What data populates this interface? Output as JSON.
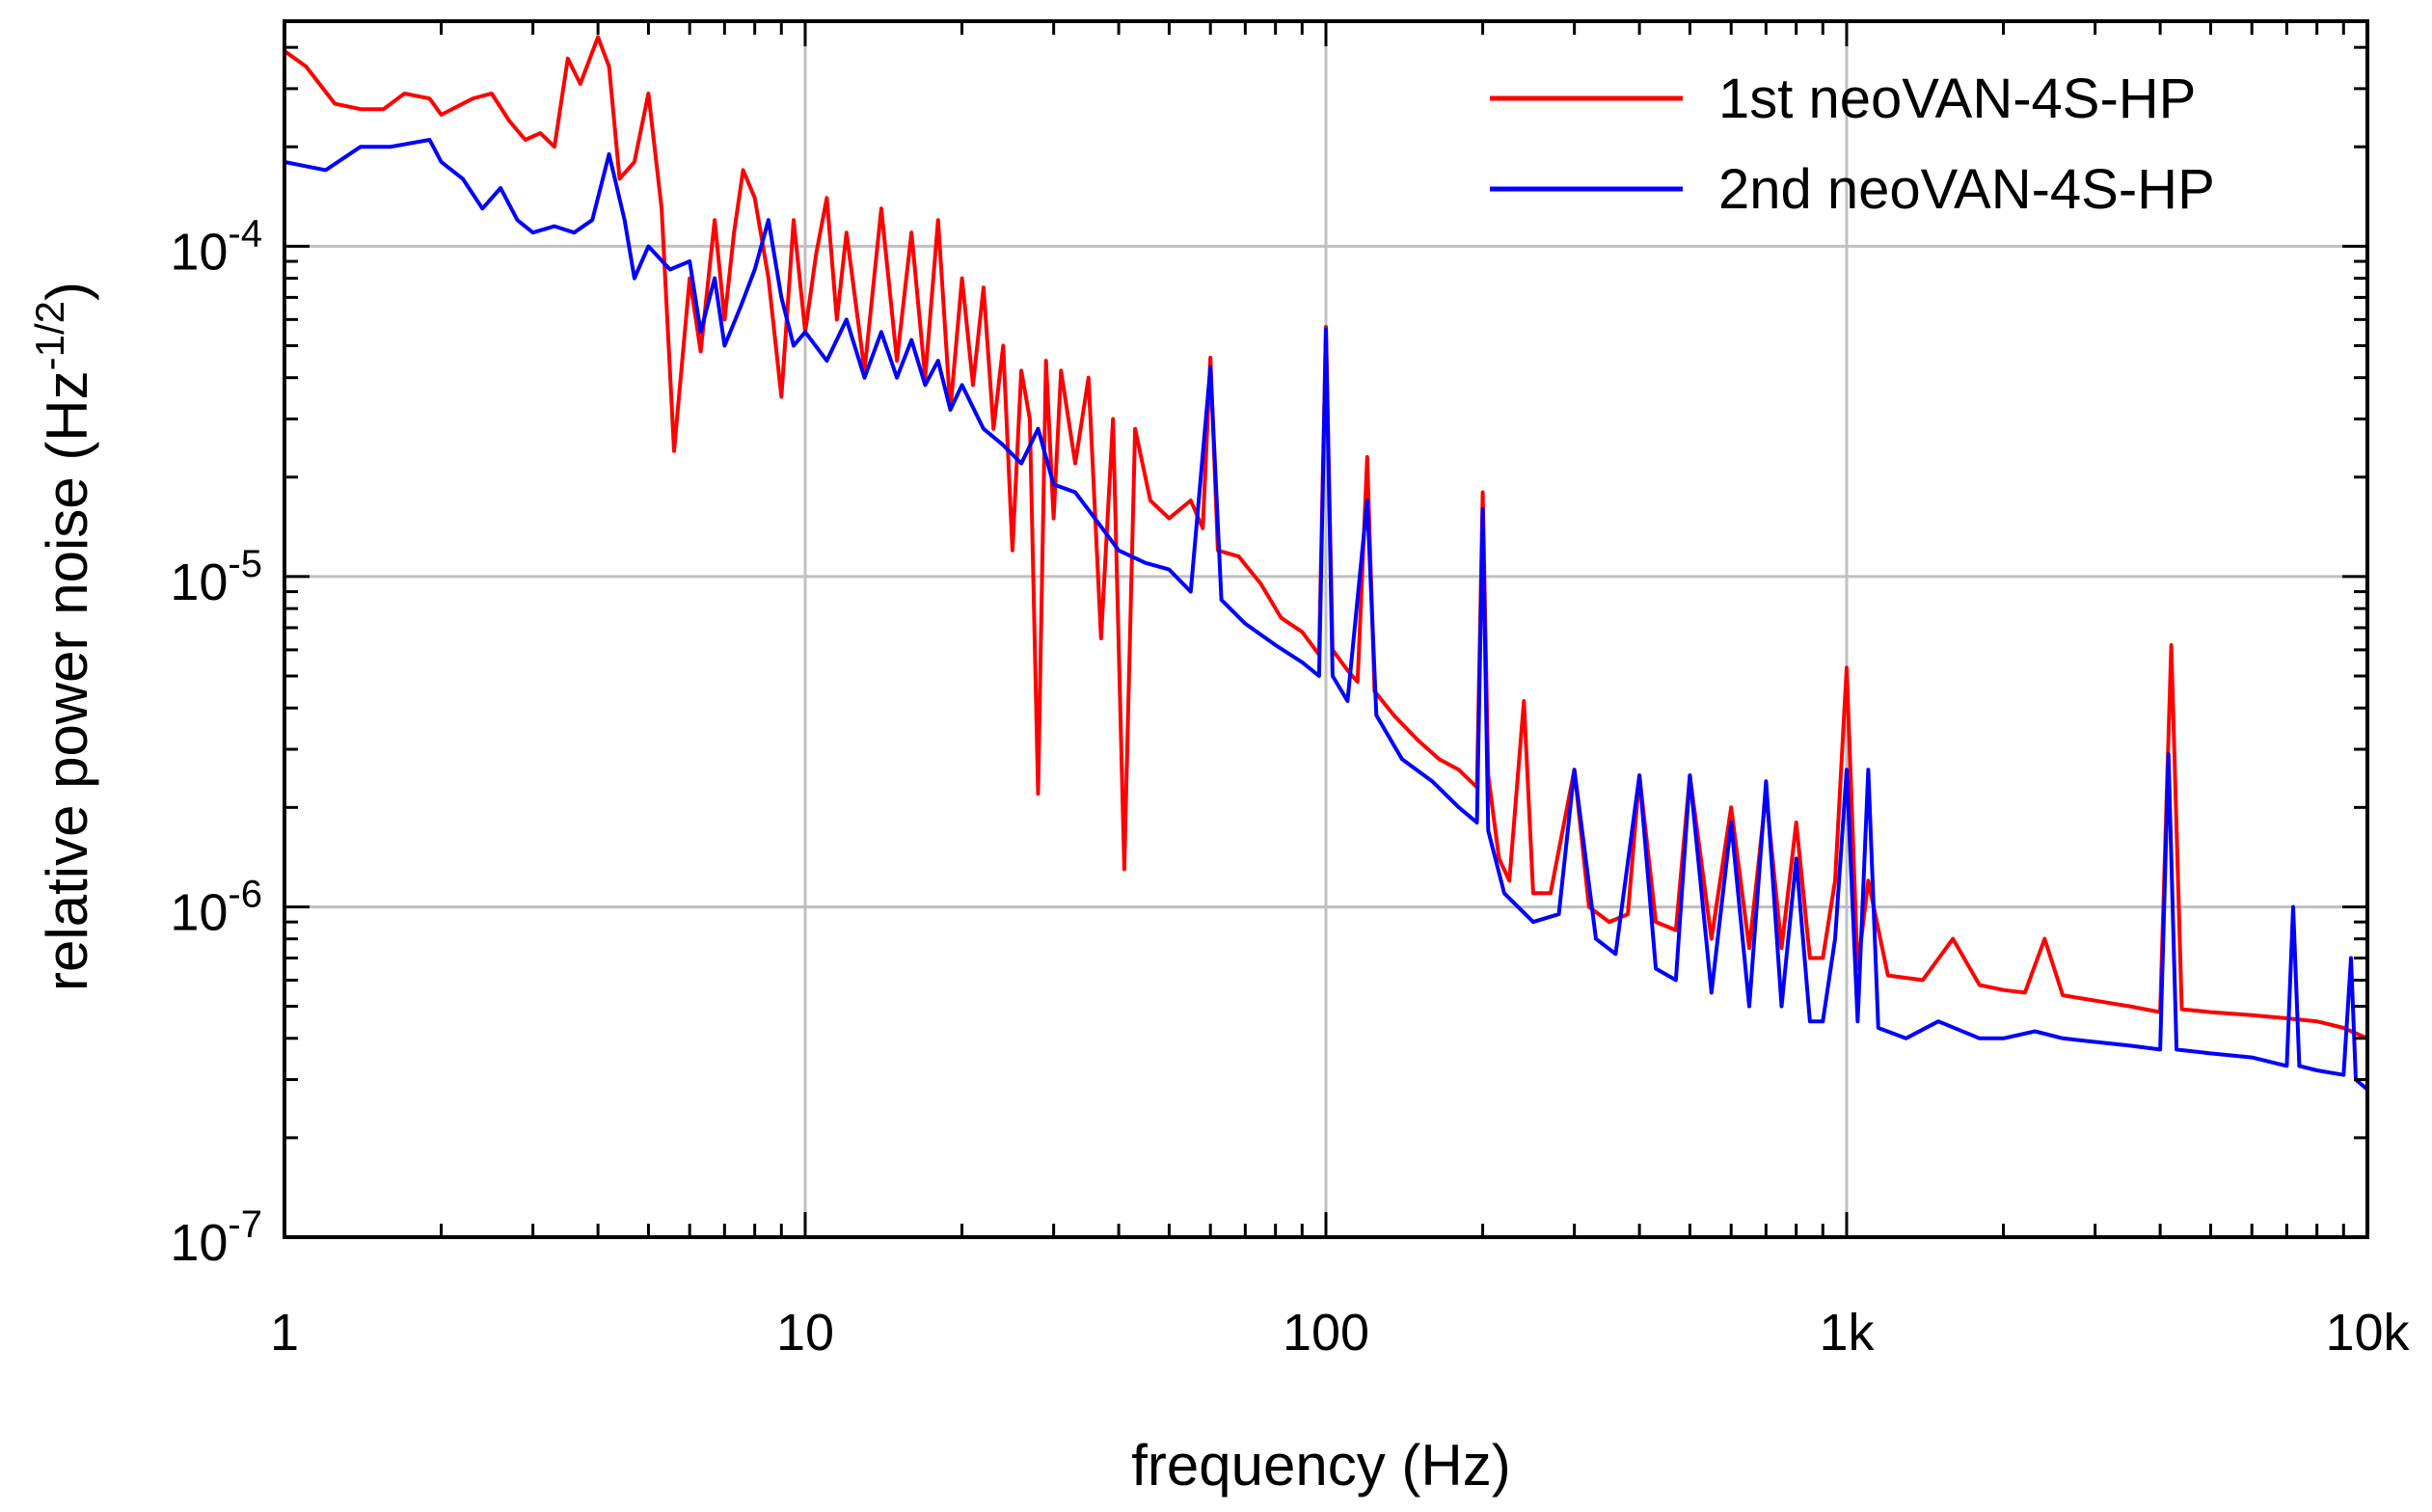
{
  "chart_data": {
    "type": "line",
    "xscale": "log",
    "yscale": "log",
    "xlim": [
      1,
      10000
    ],
    "ylim": [
      1e-07,
      0.00048
    ],
    "grid": true,
    "legend_position": "top-right",
    "xlabel": "frequency (Hz)",
    "ylabel": {
      "prefix": "relative power noise (Hz",
      "sup": "-1/2",
      "suffix": ")"
    },
    "x_ticks": [
      {
        "value": 1,
        "label": "1"
      },
      {
        "value": 10,
        "label": "10"
      },
      {
        "value": 100,
        "label": "100"
      },
      {
        "value": 1000,
        "label": "1k"
      },
      {
        "value": 10000,
        "label": "10k"
      }
    ],
    "y_ticks": [
      {
        "value": 1e-07,
        "base": "10",
        "exp": "-7"
      },
      {
        "value": 1e-06,
        "base": "10",
        "exp": "-6"
      },
      {
        "value": 1e-05,
        "base": "10",
        "exp": "-5"
      },
      {
        "value": 0.0001,
        "base": "10",
        "exp": "-4"
      }
    ],
    "series": [
      {
        "name": "1st neoVAN-4S-HP",
        "color": "#ff0000",
        "points": [
          [
            1.0,
            0.00039
          ],
          [
            1.1,
            0.00035
          ],
          [
            1.25,
            0.00027
          ],
          [
            1.4,
            0.00026
          ],
          [
            1.55,
            0.00026
          ],
          [
            1.7,
            0.00029
          ],
          [
            1.9,
            0.00028
          ],
          [
            2.0,
            0.00025
          ],
          [
            2.3,
            0.00028
          ],
          [
            2.5,
            0.00029
          ],
          [
            2.7,
            0.00024
          ],
          [
            2.9,
            0.00021
          ],
          [
            3.1,
            0.00022
          ],
          [
            3.3,
            0.0002
          ],
          [
            3.5,
            0.00037
          ],
          [
            3.7,
            0.00031
          ],
          [
            4.0,
            0.00043
          ],
          [
            4.2,
            0.00035
          ],
          [
            4.4,
            0.00016
          ],
          [
            4.7,
            0.00018
          ],
          [
            5.0,
            0.00029
          ],
          [
            5.3,
            0.00013
          ],
          [
            5.6,
            2.4e-05
          ],
          [
            6.0,
            8e-05
          ],
          [
            6.3,
            4.8e-05
          ],
          [
            6.7,
            0.00012
          ],
          [
            7.0,
            6e-05
          ],
          [
            7.3,
            0.00011
          ],
          [
            7.6,
            0.00017
          ],
          [
            8.0,
            0.00014
          ],
          [
            8.5,
            8e-05
          ],
          [
            9.0,
            3.5e-05
          ],
          [
            9.5,
            0.00012
          ],
          [
            10.0,
            5.5e-05
          ],
          [
            10.5,
            9.5e-05
          ],
          [
            11.0,
            0.00014
          ],
          [
            11.5,
            6e-05
          ],
          [
            12.0,
            0.00011
          ],
          [
            13.0,
            4.2e-05
          ],
          [
            14.0,
            0.00013
          ],
          [
            15.0,
            4.5e-05
          ],
          [
            16.0,
            0.00011
          ],
          [
            17.0,
            4e-05
          ],
          [
            18.0,
            0.00012
          ],
          [
            19.0,
            3.2e-05
          ],
          [
            20.0,
            8e-05
          ],
          [
            21.0,
            3.8e-05
          ],
          [
            22.0,
            7.5e-05
          ],
          [
            23.0,
            2.8e-05
          ],
          [
            24.0,
            5e-05
          ],
          [
            25.0,
            1.2e-05
          ],
          [
            26.0,
            4.2e-05
          ],
          [
            27.0,
            3e-05
          ],
          [
            28.0,
            2.2e-06
          ],
          [
            29.0,
            4.5e-05
          ],
          [
            30.0,
            1.5e-05
          ],
          [
            31.0,
            4.2e-05
          ],
          [
            33.0,
            2.2e-05
          ],
          [
            35.0,
            4e-05
          ],
          [
            37.0,
            6.5e-06
          ],
          [
            39.0,
            3e-05
          ],
          [
            41.0,
            1.3e-06
          ],
          [
            43.0,
            2.8e-05
          ],
          [
            46.0,
            1.7e-05
          ],
          [
            50.0,
            1.5e-05
          ],
          [
            55.0,
            1.7e-05
          ],
          [
            58.0,
            1.4e-05
          ],
          [
            60.0,
            4.6e-05
          ],
          [
            62.0,
            1.2e-05
          ],
          [
            68.0,
            1.15e-05
          ],
          [
            75.0,
            9.5e-06
          ],
          [
            82.0,
            7.5e-06
          ],
          [
            90.0,
            6.8e-06
          ],
          [
            97.0,
            5.8e-06
          ],
          [
            100.0,
            5.7e-05
          ],
          [
            103.0,
            6e-06
          ],
          [
            110.0,
            5.2e-06
          ],
          [
            115.0,
            4.8e-06
          ],
          [
            120.0,
            2.3e-05
          ],
          [
            124.0,
            4.5e-06
          ],
          [
            135.0,
            3.8e-06
          ],
          [
            150.0,
            3.2e-06
          ],
          [
            165.0,
            2.8e-06
          ],
          [
            180.0,
            2.6e-06
          ],
          [
            195.0,
            2.3e-06
          ],
          [
            200.0,
            1.8e-05
          ],
          [
            205.0,
            2.5e-06
          ],
          [
            215.0,
            1.4e-06
          ],
          [
            225.0,
            1.2e-06
          ],
          [
            240.0,
            4.2e-06
          ],
          [
            250.0,
            1.1e-06
          ],
          [
            270.0,
            1.1e-06
          ],
          [
            300.0,
            2.6e-06
          ],
          [
            320.0,
            1e-06
          ],
          [
            350.0,
            9e-07
          ],
          [
            380.0,
            9.5e-07
          ],
          [
            400.0,
            2.5e-06
          ],
          [
            430.0,
            9e-07
          ],
          [
            470.0,
            8.5e-07
          ],
          [
            500.0,
            2.5e-06
          ],
          [
            550.0,
            8e-07
          ],
          [
            600.0,
            2e-06
          ],
          [
            650.0,
            7.5e-07
          ],
          [
            700.0,
            2.2e-06
          ],
          [
            750.0,
            7.5e-07
          ],
          [
            800.0,
            1.8e-06
          ],
          [
            850.0,
            7e-07
          ],
          [
            900.0,
            7e-07
          ],
          [
            950.0,
            1.2e-06
          ],
          [
            1000.0,
            5.3e-06
          ],
          [
            1050.0,
            6.5e-07
          ],
          [
            1100.0,
            1.2e-06
          ],
          [
            1200.0,
            6.2e-07
          ],
          [
            1400.0,
            6e-07
          ],
          [
            1600.0,
            8e-07
          ],
          [
            1800.0,
            5.8e-07
          ],
          [
            2000.0,
            5.6e-07
          ],
          [
            2200.0,
            5.5e-07
          ],
          [
            2400.0,
            8e-07
          ],
          [
            2600.0,
            5.4e-07
          ],
          [
            3000.0,
            5.2e-07
          ],
          [
            3500.0,
            5e-07
          ],
          [
            4000.0,
            4.8e-07
          ],
          [
            4200.0,
            6.2e-06
          ],
          [
            4400.0,
            4.9e-07
          ],
          [
            5000.0,
            4.8e-07
          ],
          [
            6000.0,
            4.7e-07
          ],
          [
            7000.0,
            4.6e-07
          ],
          [
            8000.0,
            4.5e-07
          ],
          [
            9000.0,
            4.3e-07
          ],
          [
            10000.0,
            4e-07
          ]
        ]
      },
      {
        "name": "2nd neoVAN-4S-HP",
        "color": "#0000ff",
        "points": [
          [
            1.0,
            0.00018
          ],
          [
            1.2,
            0.00017
          ],
          [
            1.4,
            0.0002
          ],
          [
            1.6,
            0.0002
          ],
          [
            1.9,
            0.00021
          ],
          [
            2.0,
            0.00018
          ],
          [
            2.2,
            0.00016
          ],
          [
            2.4,
            0.00013
          ],
          [
            2.6,
            0.00015
          ],
          [
            2.8,
            0.00012
          ],
          [
            3.0,
            0.00011
          ],
          [
            3.3,
            0.000115
          ],
          [
            3.6,
            0.00011
          ],
          [
            3.9,
            0.00012
          ],
          [
            4.2,
            0.00019
          ],
          [
            4.5,
            0.00012
          ],
          [
            4.7,
            8e-05
          ],
          [
            5.0,
            0.0001
          ],
          [
            5.5,
            8.5e-05
          ],
          [
            6.0,
            9e-05
          ],
          [
            6.3,
            5.5e-05
          ],
          [
            6.7,
            8e-05
          ],
          [
            7.0,
            5e-05
          ],
          [
            7.5,
            6.5e-05
          ],
          [
            8.0,
            8.5e-05
          ],
          [
            8.5,
            0.00012
          ],
          [
            9.0,
            7e-05
          ],
          [
            9.5,
            5e-05
          ],
          [
            10.0,
            5.5e-05
          ],
          [
            11.0,
            4.5e-05
          ],
          [
            12.0,
            6e-05
          ],
          [
            13.0,
            4e-05
          ],
          [
            14.0,
            5.5e-05
          ],
          [
            15.0,
            4e-05
          ],
          [
            16.0,
            5.2e-05
          ],
          [
            17.0,
            3.8e-05
          ],
          [
            18.0,
            4.5e-05
          ],
          [
            19.0,
            3.2e-05
          ],
          [
            20.0,
            3.8e-05
          ],
          [
            22.0,
            2.8e-05
          ],
          [
            24.0,
            2.5e-05
          ],
          [
            26.0,
            2.2e-05
          ],
          [
            28.0,
            2.8e-05
          ],
          [
            30.0,
            1.9e-05
          ],
          [
            33.0,
            1.8e-05
          ],
          [
            36.0,
            1.5e-05
          ],
          [
            40.0,
            1.2e-05
          ],
          [
            45.0,
            1.1e-05
          ],
          [
            50.0,
            1.05e-05
          ],
          [
            55.0,
            9e-06
          ],
          [
            60.0,
            4.3e-05
          ],
          [
            63.0,
            8.5e-06
          ],
          [
            70.0,
            7.2e-06
          ],
          [
            80.0,
            6.2e-06
          ],
          [
            90.0,
            5.5e-06
          ],
          [
            97.0,
            5e-06
          ],
          [
            100.0,
            5.6e-05
          ],
          [
            103.0,
            5e-06
          ],
          [
            110.0,
            4.2e-06
          ],
          [
            120.0,
            1.7e-05
          ],
          [
            125.0,
            3.8e-06
          ],
          [
            140.0,
            2.8e-06
          ],
          [
            160.0,
            2.4e-06
          ],
          [
            180.0,
            2e-06
          ],
          [
            195.0,
            1.8e-06
          ],
          [
            200.0,
            1.6e-05
          ],
          [
            205.0,
            1.7e-06
          ],
          [
            220.0,
            1.1e-06
          ],
          [
            250.0,
            9e-07
          ],
          [
            280.0,
            9.5e-07
          ],
          [
            300.0,
            2.6e-06
          ],
          [
            330.0,
            8e-07
          ],
          [
            360.0,
            7.2e-07
          ],
          [
            400.0,
            2.5e-06
          ],
          [
            430.0,
            6.5e-07
          ],
          [
            470.0,
            6e-07
          ],
          [
            500.0,
            2.5e-06
          ],
          [
            550.0,
            5.5e-07
          ],
          [
            600.0,
            1.8e-06
          ],
          [
            650.0,
            5e-07
          ],
          [
            700.0,
            2.4e-06
          ],
          [
            750.0,
            5e-07
          ],
          [
            800.0,
            1.4e-06
          ],
          [
            850.0,
            4.5e-07
          ],
          [
            900.0,
            4.5e-07
          ],
          [
            950.0,
            8e-07
          ],
          [
            1000.0,
            2.6e-06
          ],
          [
            1050.0,
            4.5e-07
          ],
          [
            1100.0,
            2.6e-06
          ],
          [
            1150.0,
            4.3e-07
          ],
          [
            1300.0,
            4e-07
          ],
          [
            1500.0,
            4.5e-07
          ],
          [
            1800.0,
            4e-07
          ],
          [
            2000.0,
            4e-07
          ],
          [
            2300.0,
            4.2e-07
          ],
          [
            2600.0,
            4e-07
          ],
          [
            3000.0,
            3.9e-07
          ],
          [
            3500.0,
            3.8e-07
          ],
          [
            4000.0,
            3.7e-07
          ],
          [
            4150.0,
            2.9e-06
          ],
          [
            4300.0,
            3.7e-07
          ],
          [
            5000.0,
            3.6e-07
          ],
          [
            6000.0,
            3.5e-07
          ],
          [
            7000.0,
            3.3e-07
          ],
          [
            7200.0,
            1e-06
          ],
          [
            7400.0,
            3.3e-07
          ],
          [
            8000.0,
            3.2e-07
          ],
          [
            9000.0,
            3.1e-07
          ],
          [
            9300.0,
            7e-07
          ],
          [
            9500.0,
            3e-07
          ],
          [
            10000.0,
            2.8e-07
          ]
        ]
      }
    ]
  }
}
